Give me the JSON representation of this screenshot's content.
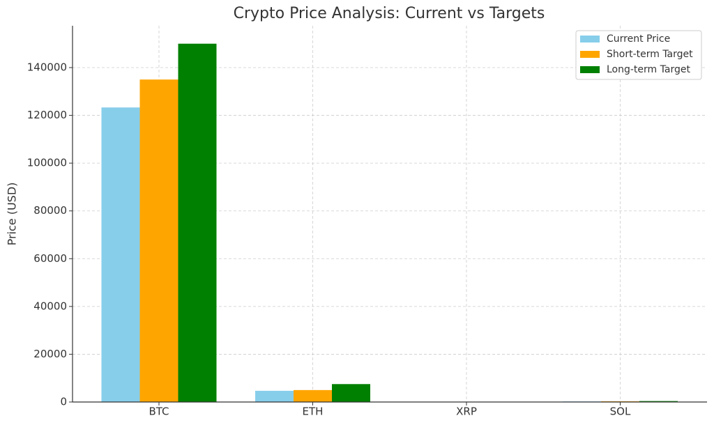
{
  "chart_data": {
    "type": "bar",
    "title": "Crypto Price Analysis: Current vs Targets",
    "y_label": "Price (USD)",
    "categories": [
      "BTC",
      "ETH",
      "XRP",
      "SOL"
    ],
    "series": [
      {
        "name": "Current Price",
        "color": "#87ceeb",
        "values": [
          123300,
          4700,
          3,
          230
        ]
      },
      {
        "name": "Short-term Target",
        "color": "#ffa500",
        "values": [
          135000,
          5000,
          3.5,
          300
        ]
      },
      {
        "name": "Long-term Target",
        "color": "#008000",
        "values": [
          150000,
          7500,
          5,
          400
        ]
      }
    ],
    "ylim": [
      0,
      157500
    ],
    "yticks": [
      0,
      20000,
      40000,
      60000,
      80000,
      100000,
      120000,
      140000
    ],
    "grid": true,
    "legend": "upper-right"
  }
}
